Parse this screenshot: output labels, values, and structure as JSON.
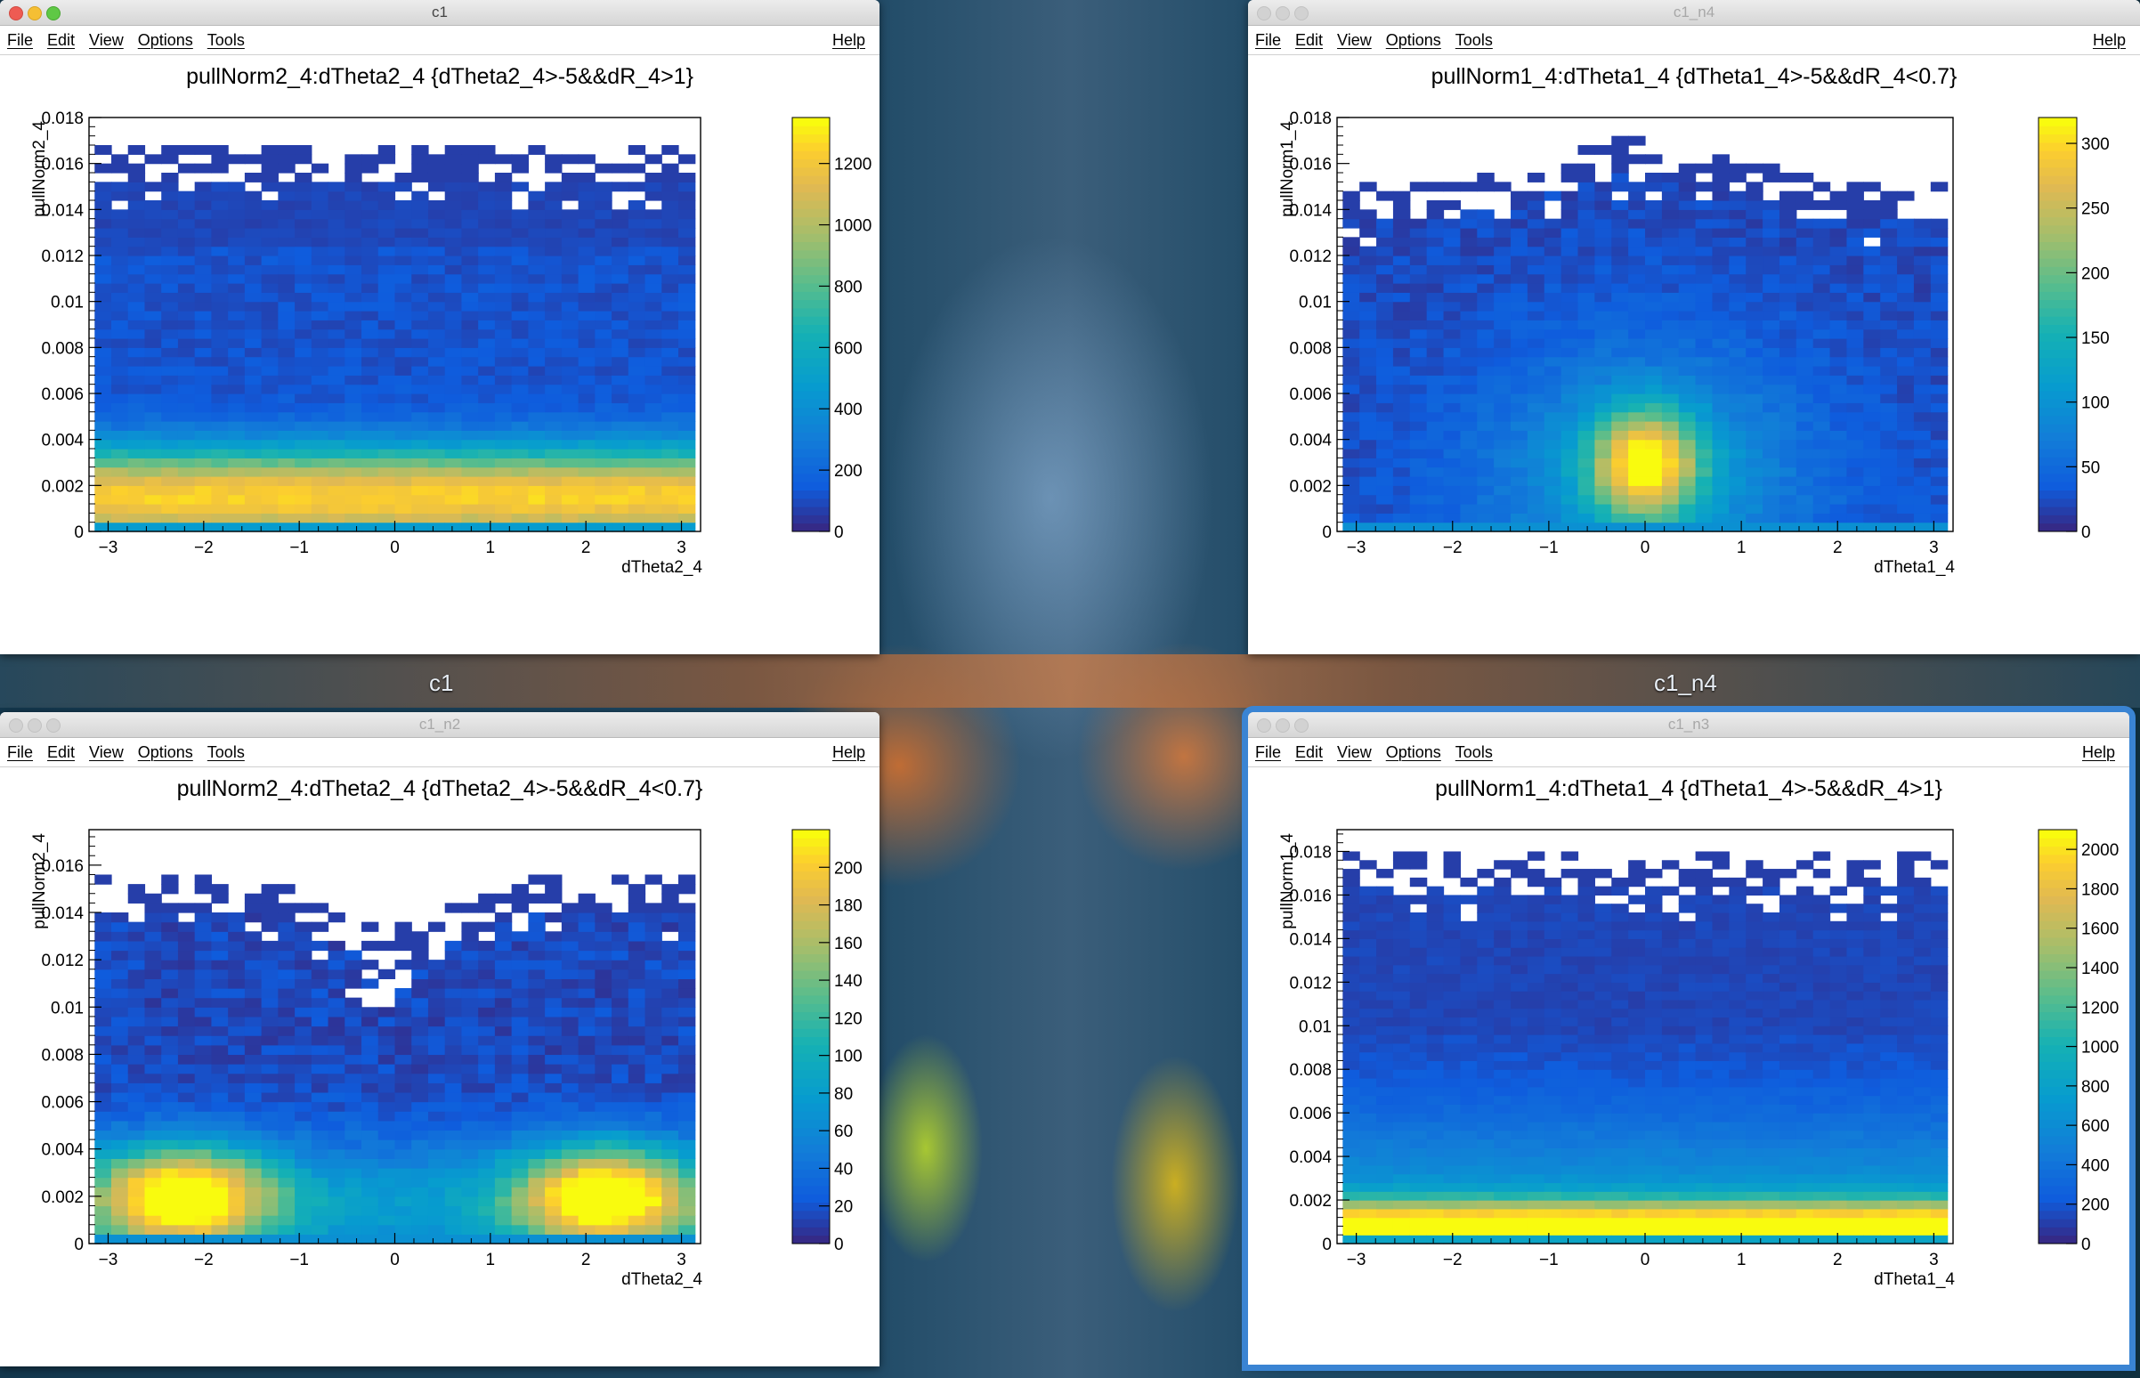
{
  "menu": {
    "file": "File",
    "edit": "Edit",
    "view": "View",
    "options": "Options",
    "tools": "Tools",
    "help": "Help"
  },
  "desktop": {
    "labels": [
      "c1",
      "c1_n4"
    ]
  },
  "windows": [
    {
      "title": "c1",
      "active": true,
      "focused": false,
      "plot_title": "pullNorm2_4:dTheta2_4 {dTheta2_4>-5&&dR_4>1}",
      "xlabel": "dTheta2_4",
      "ylabel": "pullNorm2_4"
    },
    {
      "title": "c1_n4",
      "active": false,
      "focused": false,
      "plot_title": "pullNorm1_4:dTheta1_4 {dTheta1_4>-5&&dR_4<0.7}",
      "xlabel": "dTheta1_4",
      "ylabel": "pullNorm1_4"
    },
    {
      "title": "c1_n2",
      "active": false,
      "focused": false,
      "plot_title": "pullNorm2_4:dTheta2_4 {dTheta2_4>-5&&dR_4<0.7}",
      "xlabel": "dTheta2_4",
      "ylabel": "pullNorm2_4"
    },
    {
      "title": "c1_n3",
      "active": false,
      "focused": true,
      "plot_title": "pullNorm1_4:dTheta1_4 {dTheta1_4>-5&&dR_4>1}",
      "xlabel": "dTheta1_4",
      "ylabel": "pullNorm1_4"
    }
  ],
  "chart_data": [
    {
      "type": "heatmap",
      "title": "pullNorm2_4:dTheta2_4 {dTheta2_4>-5&&dR_4>1}",
      "xlabel": "dTheta2_4",
      "ylabel": "pullNorm2_4",
      "xlim": [
        -3.2,
        3.2
      ],
      "ylim": [
        0,
        0.018
      ],
      "xticks": [
        "−3",
        "−2",
        "−1",
        "0",
        "1",
        "2",
        "3"
      ],
      "yticks": [
        "0",
        "0.002",
        "0.004",
        "0.006",
        "0.008",
        "0.01",
        "0.012",
        "0.014",
        "0.016",
        "0.018"
      ],
      "zticks": [
        "0",
        "200",
        "400",
        "600",
        "800",
        "1000",
        "1200"
      ],
      "zmax": 1350,
      "shape": "flat",
      "peak_y": 0.0015
    },
    {
      "type": "heatmap",
      "title": "pullNorm1_4:dTheta1_4 {dTheta1_4>-5&&dR_4<0.7}",
      "xlabel": "dTheta1_4",
      "ylabel": "pullNorm1_4",
      "xlim": [
        -3.2,
        3.2
      ],
      "ylim": [
        0,
        0.018
      ],
      "xticks": [
        "−3",
        "−2",
        "−1",
        "0",
        "1",
        "2",
        "3"
      ],
      "yticks": [
        "0",
        "0.002",
        "0.004",
        "0.006",
        "0.008",
        "0.01",
        "0.012",
        "0.014",
        "0.016",
        "0.018"
      ],
      "zticks": [
        "0",
        "50",
        "100",
        "150",
        "200",
        "250",
        "300"
      ],
      "zmax": 320,
      "shape": "peak",
      "peak_x": 0,
      "peak_y": 0.003
    },
    {
      "type": "heatmap",
      "title": "pullNorm2_4:dTheta2_4 {dTheta2_4>-5&&dR_4<0.7}",
      "xlabel": "dTheta2_4",
      "ylabel": "pullNorm2_4",
      "xlim": [
        -3.2,
        3.2
      ],
      "ylim": [
        0,
        0.0175
      ],
      "xticks": [
        "−3",
        "−2",
        "−1",
        "0",
        "1",
        "2",
        "3"
      ],
      "yticks": [
        "0",
        "0.002",
        "0.004",
        "0.006",
        "0.008",
        "0.01",
        "0.012",
        "0.014",
        "0.016"
      ],
      "zticks": [
        "0",
        "20",
        "40",
        "60",
        "80",
        "100",
        "120",
        "140",
        "160",
        "180",
        "200"
      ],
      "zmax": 220,
      "shape": "double",
      "lobes_x": [
        -2.2,
        2.2
      ],
      "peak_y": 0.002
    },
    {
      "type": "heatmap",
      "title": "pullNorm1_4:dTheta1_4 {dTheta1_4>-5&&dR_4>1}",
      "xlabel": "dTheta1_4",
      "ylabel": "pullNorm1_4",
      "xlim": [
        -3.2,
        3.2
      ],
      "ylim": [
        0,
        0.019
      ],
      "xticks": [
        "−3",
        "−2",
        "−1",
        "0",
        "1",
        "2",
        "3"
      ],
      "yticks": [
        "0",
        "0.002",
        "0.004",
        "0.006",
        "0.008",
        "0.01",
        "0.012",
        "0.014",
        "0.016",
        "0.018"
      ],
      "zticks": [
        "0",
        "200",
        "400",
        "600",
        "800",
        "1000",
        "1200",
        "1400",
        "1600",
        "1800",
        "2000"
      ],
      "zmax": 2100,
      "shape": "flatlow",
      "peak_y": 0.0008
    }
  ]
}
